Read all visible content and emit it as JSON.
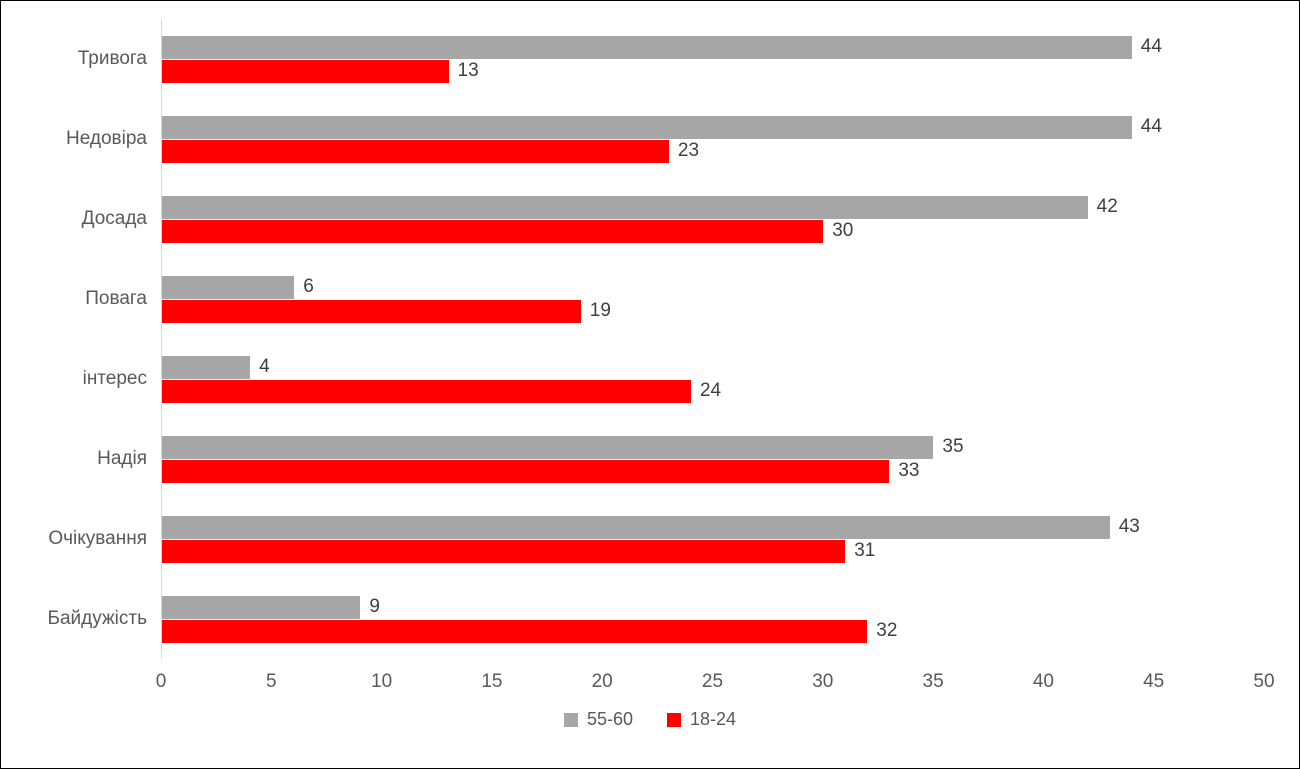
{
  "chart_data": {
    "type": "bar",
    "orientation": "horizontal",
    "title": "",
    "categories": [
      "Тривога",
      "Недовіра",
      "Досада",
      "Повага",
      "інтерес",
      "Надія",
      "Очікування",
      "Байдужість"
    ],
    "series": [
      {
        "name": "55-60",
        "color": "#A6A6A6",
        "values": [
          44,
          44,
          42,
          6,
          4,
          35,
          43,
          9
        ]
      },
      {
        "name": "18-24",
        "color": "#FF0000",
        "values": [
          13,
          23,
          30,
          19,
          24,
          33,
          31,
          32
        ]
      }
    ],
    "xlim": [
      0,
      50
    ],
    "x_ticks": [
      0,
      5,
      10,
      15,
      20,
      25,
      30,
      35,
      40,
      45,
      50
    ],
    "grid": false,
    "data_labels": true,
    "legend_position": "bottom",
    "colors": {
      "axis_text": "#595959",
      "data_label": "#3f3f3f",
      "axis_line": "#d9d9d9",
      "border": "#000000"
    }
  }
}
